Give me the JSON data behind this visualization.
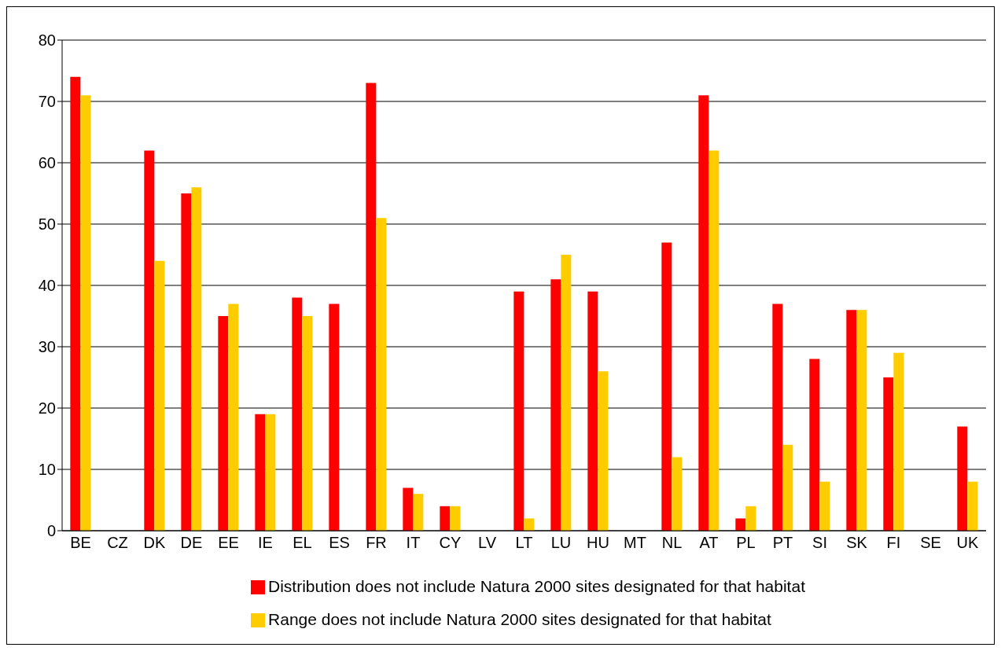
{
  "chart_data": {
    "type": "bar",
    "categories": [
      "BE",
      "CZ",
      "DK",
      "DE",
      "EE",
      "IE",
      "EL",
      "ES",
      "FR",
      "IT",
      "CY",
      "LV",
      "LT",
      "LU",
      "HU",
      "MT",
      "NL",
      "AT",
      "PL",
      "PT",
      "SI",
      "SK",
      "FI",
      "SE",
      "UK"
    ],
    "series": [
      {
        "name": "Distribution does not include Natura 2000 sites designated for that habitat",
        "color": "#ff0000",
        "values": [
          74,
          null,
          62,
          55,
          35,
          19,
          38,
          37,
          73,
          7,
          4,
          null,
          39,
          41,
          39,
          null,
          47,
          71,
          2,
          37,
          28,
          36,
          25,
          null,
          17
        ]
      },
      {
        "name": "Range does not include Natura 2000 sites designated for that habitat",
        "color": "#ffcc00",
        "values": [
          71,
          null,
          44,
          56,
          37,
          19,
          35,
          null,
          51,
          6,
          4,
          null,
          2,
          45,
          26,
          null,
          12,
          62,
          4,
          14,
          8,
          36,
          29,
          null,
          8
        ]
      }
    ],
    "ylim": [
      0,
      80
    ],
    "yticks": [
      0,
      10,
      20,
      30,
      40,
      50,
      60,
      70,
      80
    ],
    "grid": "y",
    "legend": "bottom"
  }
}
